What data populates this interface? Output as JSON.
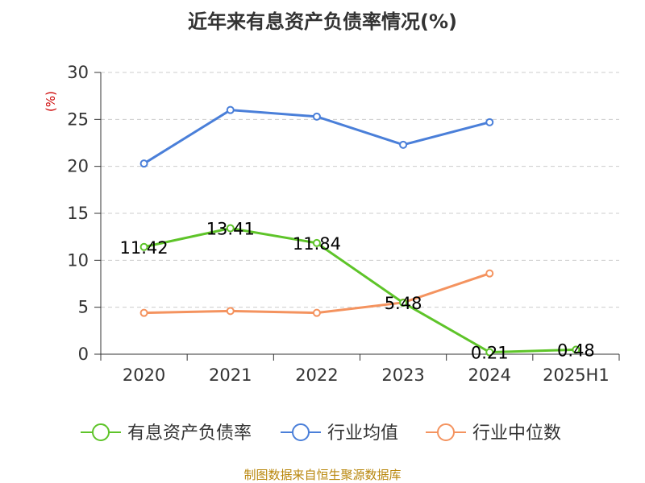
{
  "chart_data": {
    "type": "line",
    "title": "近年来有息资产负债率情况(%)",
    "unit_label": "(%)",
    "categories": [
      "2020",
      "2021",
      "2022",
      "2023",
      "2024",
      "2025H1"
    ],
    "ylim": [
      0,
      30
    ],
    "yticks": [
      0,
      5,
      10,
      15,
      20,
      25,
      30
    ],
    "grid": true,
    "legend_position": "bottom",
    "series": [
      {
        "name": "有息资产负债率",
        "color": "#5ec429",
        "values": [
          11.42,
          13.41,
          11.84,
          5.48,
          0.21,
          0.48
        ],
        "labels": [
          "11.42",
          "13.41",
          "11.84",
          "5.48",
          "0.21",
          "0.48"
        ]
      },
      {
        "name": "行业均值",
        "color": "#4a7fd9",
        "values": [
          20.3,
          26.0,
          25.3,
          22.3,
          24.7,
          null
        ]
      },
      {
        "name": "行业中位数",
        "color": "#f4935f",
        "values": [
          4.4,
          4.6,
          4.4,
          5.5,
          8.6,
          null
        ]
      }
    ],
    "source": "制图数据来自恒生聚源数据库"
  }
}
